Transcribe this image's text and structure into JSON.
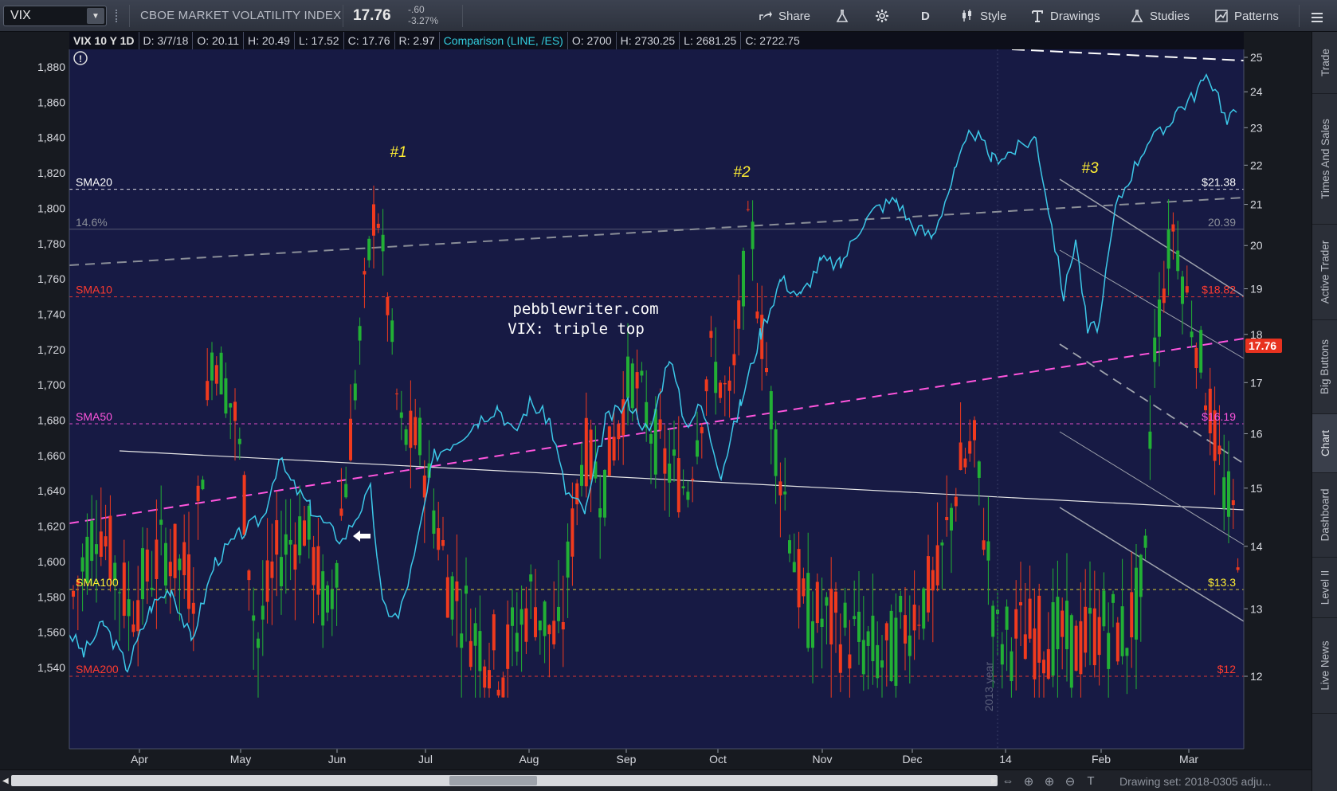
{
  "toolbar": {
    "symbol": "VIX",
    "company": "CBOE MARKET VOLATILITY INDEX",
    "last_price": "17.76",
    "change": "-.60",
    "change_pct": "-3.27%",
    "share_label": "Share",
    "period_label": "D",
    "style_label": "Style",
    "drawings_label": "Drawings",
    "studies_label": "Studies",
    "patterns_label": "Patterns"
  },
  "header": {
    "title": "VIX 10 Y 1D",
    "date": "D: 3/7/18",
    "open": "O: 20.11",
    "high": "H: 20.49",
    "low": "L: 17.52",
    "close": "C: 17.76",
    "range": "R: 2.97",
    "comparison": "Comparison (LINE, /ES)",
    "cmp_open": "O: 2700",
    "cmp_high": "H: 2730.25",
    "cmp_low": "L: 2681.25",
    "cmp_close": "C: 2722.75"
  },
  "chart_data": {
    "type": "candlestick",
    "symbol": "VIX",
    "comparison_series": "/ES",
    "left_axis_ticks": [
      "1,880",
      "1,860",
      "1,840",
      "1,820",
      "1,800",
      "1,780",
      "1,760",
      "1,740",
      "1,720",
      "1,700",
      "1,680",
      "1,660",
      "1,640",
      "1,620",
      "1,600",
      "1,580",
      "1,560",
      "1,540"
    ],
    "right_axis_ticks": [
      "25",
      "24",
      "23",
      "22",
      "21",
      "20",
      "19",
      "18",
      "17",
      "16",
      "15",
      "14",
      "13",
      "12"
    ],
    "x_ticks": [
      "Apr",
      "May",
      "Jun",
      "Jul",
      "Aug",
      "Sep",
      "Oct",
      "Nov",
      "Dec",
      "14",
      "Feb",
      "Mar"
    ],
    "current_price_label": "17.76",
    "current_price": 17.76,
    "annotations": {
      "watermark_line1": "pebblewriter.com",
      "watermark_line2": "VIX: triple top",
      "peak1": "#1",
      "peak2": "#2",
      "peak3": "#3",
      "year_marker": "2013 year"
    },
    "levels": [
      {
        "label": "SMA20",
        "value": 21.38,
        "price_label": "$21.38",
        "color": "#ffffff"
      },
      {
        "label": "14.6%",
        "value": 20.39,
        "price_label": "20.39",
        "color": "#8a8e98"
      },
      {
        "label": "SMA10",
        "value": 18.82,
        "price_label": "$18.82",
        "color": "#ff3b2f"
      },
      {
        "label": "SMA50",
        "value": 16.19,
        "price_label": "$16.19",
        "color": "#ff55dd"
      },
      {
        "label": "SMA100",
        "value": 13.3,
        "price_label": "$13.3",
        "color": "#ffee33"
      },
      {
        "label": "SMA200",
        "value": 12,
        "price_label": "$12",
        "color": "#ff3b2f"
      }
    ],
    "vix_ylim": [
      11.4,
      25.2
    ],
    "es_ylim": [
      1530,
      1889
    ]
  },
  "sidebar": {
    "tabs": [
      "Trade",
      "Times And Sales",
      "Active Trader",
      "Big Buttons",
      "Chart",
      "Dashboard",
      "Level II",
      "Live News"
    ]
  },
  "bottom": {
    "drawing_set": "Drawing set: 2018-0305 adju..."
  }
}
